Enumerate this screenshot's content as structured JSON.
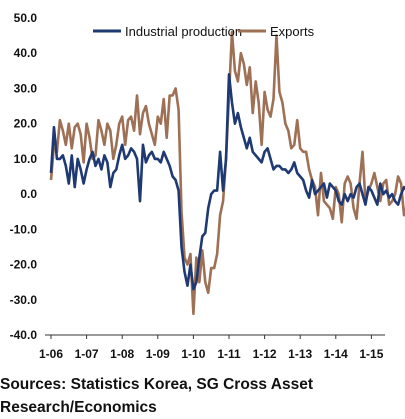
{
  "chart_data": {
    "type": "line",
    "title": "",
    "xlabel": "",
    "ylabel": "",
    "ylim": [
      -40,
      50
    ],
    "y_ticks": [
      50,
      40,
      30,
      20,
      10,
      0,
      -10,
      -20,
      -30,
      -40
    ],
    "y_tick_labels": [
      "50.0",
      "40.0",
      "30.0",
      "20.0",
      "10.0",
      "0.0",
      "-10.0",
      "-20.0",
      "-30.0",
      "-40.0"
    ],
    "x_tick_labels": [
      "1-06",
      "1-07",
      "1-08",
      "1-09",
      "1-10",
      "1-11",
      "1-12",
      "1-13",
      "1-14",
      "1-15"
    ],
    "x_start": "2006-01",
    "legend": "top-center",
    "grid": false,
    "series": [
      {
        "name": "Industrial production",
        "color": "#1f3a73",
        "values": [
          6,
          19,
          10,
          10,
          11,
          8,
          3,
          11,
          2,
          10,
          7,
          3,
          7,
          10,
          12,
          8,
          10,
          7,
          11,
          9,
          2,
          6,
          7,
          11,
          14,
          10,
          11,
          13,
          12,
          10,
          -2,
          14,
          9,
          11,
          12,
          10,
          10,
          9,
          12,
          10,
          8,
          5,
          4,
          1,
          -15,
          -22,
          -26,
          -20,
          -27,
          -25,
          -18,
          -12,
          -11,
          -4,
          0,
          1,
          1,
          12,
          1,
          10,
          34,
          26,
          20,
          23,
          19,
          16,
          13,
          16,
          12,
          11,
          10,
          9,
          12,
          13,
          10,
          7,
          8,
          8,
          7,
          7,
          6,
          7,
          9,
          6,
          5,
          4,
          1,
          -1,
          4,
          0,
          1,
          2,
          3,
          -1,
          3,
          2,
          1,
          -2,
          -3,
          0,
          -2,
          0,
          -1,
          2,
          3,
          0,
          -3,
          2,
          1,
          -1,
          -3,
          3,
          0,
          1,
          -1,
          0,
          -2,
          -3,
          0,
          2,
          1,
          -5,
          -1,
          -1,
          -5,
          -2,
          -3,
          -5,
          -2,
          -2
        ]
      },
      {
        "name": "Exports",
        "color": "#9e7055",
        "values": [
          4,
          14,
          12,
          21,
          18,
          14,
          20,
          13,
          19,
          20,
          17,
          9,
          20,
          16,
          10,
          11,
          21,
          18,
          14,
          20,
          18,
          10,
          14,
          20,
          22,
          14,
          21,
          22,
          18,
          28,
          17,
          23,
          25,
          20,
          17,
          14,
          22,
          20,
          27,
          16,
          28,
          28,
          30,
          24,
          -5,
          -18,
          -20,
          -17,
          -34,
          -18,
          -25,
          -16,
          -25,
          -28,
          -21,
          -21,
          -17,
          -6,
          -2,
          10,
          28,
          46,
          35,
          32,
          40,
          37,
          31,
          36,
          23,
          32,
          26,
          14,
          29,
          24,
          22,
          27,
          45,
          29,
          26,
          20,
          18,
          13,
          14,
          21,
          13,
          12,
          12,
          7,
          4,
          2,
          -6,
          6,
          -2,
          -3,
          -4,
          -7,
          2,
          0,
          -8,
          3,
          5,
          3,
          -4,
          -7,
          3,
          12,
          -2,
          1,
          3,
          6,
          2,
          -2,
          3,
          4,
          -3,
          -2,
          0,
          5,
          3,
          -6,
          -3,
          4,
          1,
          -4,
          -7,
          -4,
          -8,
          -10,
          -12,
          -5,
          -3
        ]
      }
    ]
  },
  "source": {
    "line1": "Sources: Statistics Korea, SG Cross Asset",
    "line2": "Research/Economics"
  }
}
